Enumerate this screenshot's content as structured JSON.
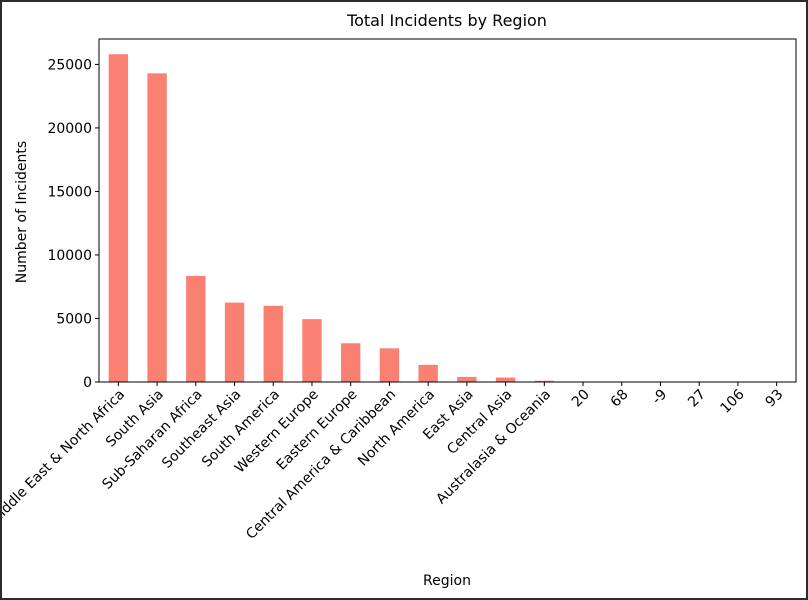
{
  "chart_data": {
    "type": "bar",
    "title": "Total Incidents by Region",
    "xlabel": "Region",
    "ylabel": "Number of Incidents",
    "ylim": [
      0,
      27000
    ],
    "yticks": [
      0,
      5000,
      10000,
      15000,
      20000,
      25000
    ],
    "categories": [
      "Middle East & North Africa",
      "South Asia",
      "Sub-Saharan Africa",
      "Southeast Asia",
      "South America",
      "Western Europe",
      "Eastern Europe",
      "Central America & Caribbean",
      "North America",
      "East Asia",
      "Central Asia",
      "Australasia & Oceania",
      "20",
      "68",
      "-9",
      "27",
      "106",
      "93"
    ],
    "values": [
      25800,
      24300,
      8350,
      6250,
      6000,
      4950,
      3050,
      2650,
      1350,
      400,
      350,
      100,
      0,
      0,
      0,
      0,
      0,
      0
    ],
    "bar_color": "#fa8072",
    "grid": false,
    "legend": "none"
  }
}
